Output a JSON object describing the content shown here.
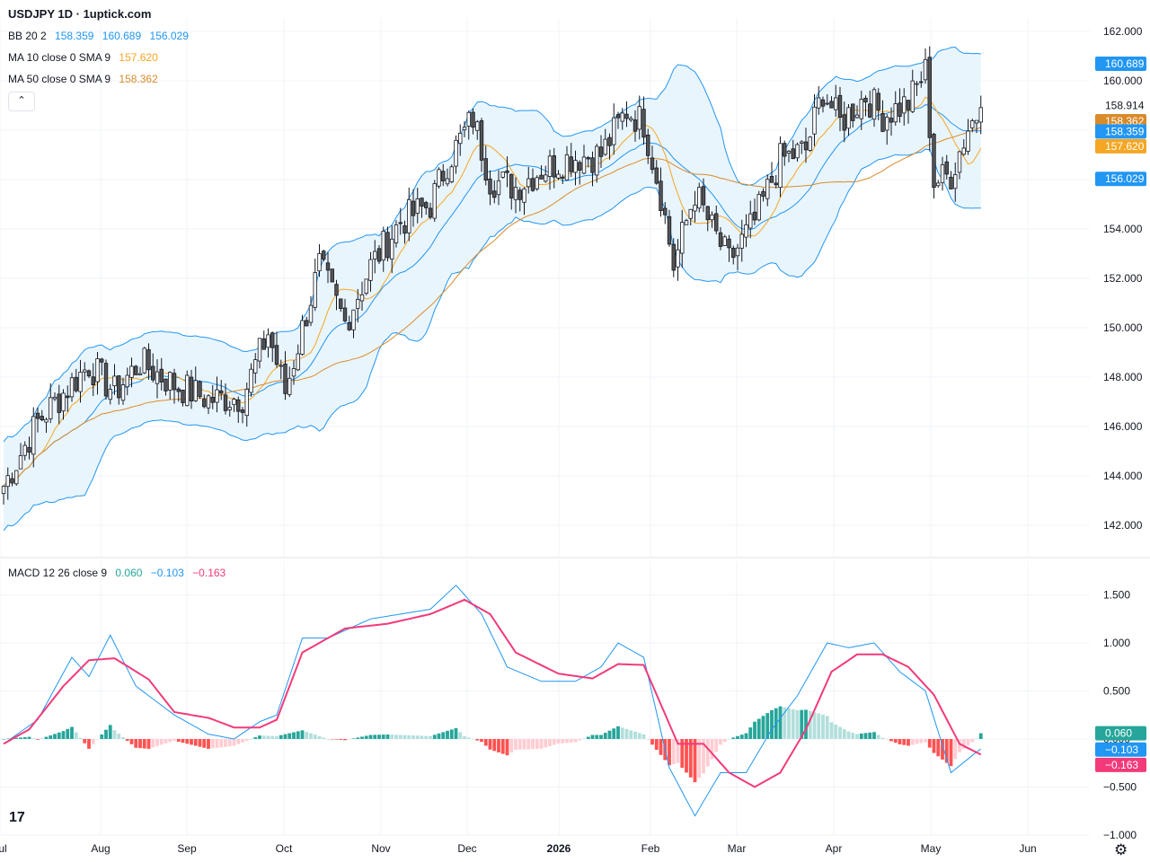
{
  "header": {
    "title": "USDJPY 1D · 1uptick.com",
    "bb_label": "BB 20 2",
    "bb_values": [
      "158.359",
      "160.689",
      "156.029"
    ],
    "ma10_label": "MA 10 close 0 SMA 9",
    "ma10_value": "157.620",
    "ma50_label": "MA 50 close 0 SMA 9",
    "ma50_value": "158.362",
    "collapse_icon": "chevron-up-icon"
  },
  "macd_header": {
    "label": "MACD 12 26 close 9",
    "values": [
      "0.060",
      "−0.103",
      "−0.163"
    ]
  },
  "colors": {
    "up": "#ffffff",
    "down": "#555555",
    "wick": "#131722",
    "bb_line": "#2196f3",
    "bb_fill": "#e3f2fd",
    "ma10": "#f5a623",
    "ma50": "#d98a2b",
    "macd": "#2196f3",
    "signal": "#f23a7a",
    "hist_up_strong": "#26a69a",
    "hist_up_weak": "#b2dfdb",
    "hist_down_strong": "#ff5252",
    "hist_down_weak": "#ffcdd2"
  },
  "chart_data": [
    {
      "type": "candlestick",
      "title": "USDJPY 1D",
      "x_tick_labels": [
        "Jul",
        "Aug",
        "Sep",
        "Oct",
        "Nov",
        "Dec",
        "2026",
        "Feb",
        "Mar",
        "Apr",
        "May",
        "Jun"
      ],
      "ylim": [
        141,
        162
      ],
      "y_ticks": [
        142,
        144,
        146,
        148,
        150,
        152,
        154,
        156,
        158,
        160,
        162
      ],
      "y_tick_labels": [
        "142.000",
        "144.000",
        "146.000",
        "148.000",
        "150.000",
        "152.000",
        "154.000",
        "156.000",
        "158.000",
        "160.000",
        "162.000"
      ],
      "last_close": "158.914",
      "price_labels": [
        {
          "text": "160.689",
          "value": 160.689,
          "color": "#2196f3"
        },
        {
          "text": "158.914",
          "value": 158.914,
          "color": "none"
        },
        {
          "text": "158.362",
          "value": 158.362,
          "color": "#d98a2b"
        },
        {
          "text": "158.359",
          "value": 158.359,
          "color": "#2196f3"
        },
        {
          "text": "157.620",
          "value": 157.62,
          "color": "#f5a623"
        },
        {
          "text": "156.029",
          "value": 156.029,
          "color": "#2196f3"
        }
      ],
      "close_anchors": [
        [
          0,
          143.6
        ],
        [
          8,
          146.2
        ],
        [
          20,
          148.5
        ],
        [
          26,
          147.4
        ],
        [
          32,
          148.6
        ],
        [
          40,
          147.7
        ],
        [
          48,
          147.1
        ],
        [
          56,
          147.2
        ],
        [
          62,
          149.8
        ],
        [
          66,
          147.4
        ],
        [
          74,
          152.5
        ],
        [
          80,
          150.2
        ],
        [
          86,
          152.5
        ],
        [
          93,
          154.3
        ],
        [
          100,
          155.0
        ],
        [
          104,
          156.7
        ],
        [
          110,
          158.5
        ],
        [
          114,
          156.0
        ],
        [
          120,
          155.7
        ],
        [
          126,
          156.4
        ],
        [
          133,
          156.9
        ],
        [
          140,
          157.0
        ],
        [
          146,
          158.8
        ],
        [
          150,
          158.3
        ],
        [
          154,
          155.4
        ],
        [
          157,
          152.5
        ],
        [
          162,
          155.5
        ],
        [
          166,
          154.0
        ],
        [
          170,
          152.7
        ],
        [
          176,
          154.3
        ],
        [
          182,
          156.8
        ],
        [
          188,
          157.2
        ],
        [
          192,
          159.6
        ],
        [
          196,
          158.3
        ],
        [
          202,
          159.4
        ],
        [
          206,
          158.6
        ],
        [
          212,
          159.1
        ],
        [
          216,
          160.4
        ],
        [
          218,
          155.9
        ],
        [
          222,
          156.2
        ],
        [
          226,
          158.1
        ],
        [
          229,
          158.9
        ]
      ],
      "series": [
        {
          "name": "BB 20 2",
          "values": [
            "158.359",
            "160.689",
            "156.029"
          ]
        },
        {
          "name": "MA 10 close 0 SMA 9",
          "values": [
            "157.620"
          ]
        },
        {
          "name": "MA 50 close 0 SMA 9",
          "values": [
            "158.362"
          ]
        }
      ]
    },
    {
      "type": "macd",
      "title": "MACD 12 26 close 9",
      "ylim": [
        -1,
        1.6
      ],
      "y_ticks": [
        -1,
        -0.5,
        0,
        0.5,
        1,
        1.5
      ],
      "y_tick_labels": [
        "−1.000",
        "−0.500",
        "0.000",
        "0.500",
        "1.000",
        "1.500"
      ],
      "macd_anchors": [
        [
          0,
          -0.05
        ],
        [
          8,
          0.2
        ],
        [
          16,
          0.85
        ],
        [
          20,
          0.65
        ],
        [
          25,
          1.08
        ],
        [
          31,
          0.55
        ],
        [
          40,
          0.25
        ],
        [
          48,
          0.05
        ],
        [
          54,
          0.0
        ],
        [
          60,
          0.18
        ],
        [
          64,
          0.25
        ],
        [
          70,
          1.05
        ],
        [
          76,
          1.05
        ],
        [
          86,
          1.25
        ],
        [
          93,
          1.3
        ],
        [
          100,
          1.35
        ],
        [
          106,
          1.6
        ],
        [
          112,
          1.3
        ],
        [
          118,
          0.75
        ],
        [
          126,
          0.6
        ],
        [
          134,
          0.6
        ],
        [
          140,
          0.75
        ],
        [
          144,
          1.0
        ],
        [
          150,
          0.85
        ],
        [
          156,
          -0.3
        ],
        [
          162,
          -0.8
        ],
        [
          168,
          -0.35
        ],
        [
          174,
          -0.35
        ],
        [
          180,
          0.1
        ],
        [
          186,
          0.45
        ],
        [
          193,
          1.0
        ],
        [
          198,
          0.95
        ],
        [
          204,
          1.0
        ],
        [
          210,
          0.7
        ],
        [
          216,
          0.5
        ],
        [
          222,
          -0.35
        ],
        [
          229,
          -0.1
        ]
      ],
      "signal_anchors": [
        [
          0,
          -0.05
        ],
        [
          6,
          0.1
        ],
        [
          14,
          0.55
        ],
        [
          20,
          0.82
        ],
        [
          26,
          0.84
        ],
        [
          34,
          0.62
        ],
        [
          40,
          0.28
        ],
        [
          48,
          0.22
        ],
        [
          54,
          0.12
        ],
        [
          60,
          0.12
        ],
        [
          64,
          0.2
        ],
        [
          70,
          0.9
        ],
        [
          80,
          1.15
        ],
        [
          90,
          1.2
        ],
        [
          100,
          1.3
        ],
        [
          108,
          1.45
        ],
        [
          114,
          1.3
        ],
        [
          120,
          0.9
        ],
        [
          130,
          0.68
        ],
        [
          138,
          0.63
        ],
        [
          144,
          0.78
        ],
        [
          150,
          0.77
        ],
        [
          158,
          -0.05
        ],
        [
          164,
          -0.05
        ],
        [
          170,
          -0.35
        ],
        [
          176,
          -0.5
        ],
        [
          182,
          -0.35
        ],
        [
          188,
          0.1
        ],
        [
          194,
          0.7
        ],
        [
          200,
          0.88
        ],
        [
          206,
          0.88
        ],
        [
          212,
          0.75
        ],
        [
          218,
          0.46
        ],
        [
          224,
          -0.05
        ],
        [
          229,
          -0.163
        ]
      ],
      "last_values": {
        "histogram": 0.06,
        "macd": -0.103,
        "signal": -0.163
      },
      "price_labels": [
        {
          "text": "0.060",
          "value": 0.06,
          "color": "#26a69a"
        },
        {
          "text": "−0.103",
          "value": -0.103,
          "color": "#2196f3"
        },
        {
          "text": "−0.163",
          "value": -0.163,
          "color": "#f23a7a"
        }
      ]
    }
  ],
  "footer": {
    "logo": "17",
    "settings_icon": "gear-icon"
  }
}
